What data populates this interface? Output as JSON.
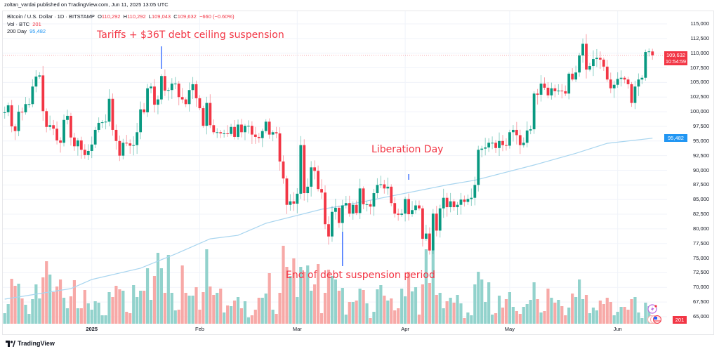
{
  "publish_line": "zoltan_vardai published on TradingView.com, Jun 11, 2025 13:05 UTC",
  "legend": {
    "symbol": "Bitcoin / U.S. Dollar · 1D · BITSTAMP",
    "o_label": "O",
    "o": "110,292",
    "h_label": "H",
    "h": "110,292",
    "l_label": "L",
    "l": "109,043",
    "c_label": "C",
    "c": "109,632",
    "change": "−660 (−0.60%)",
    "vol_label": "Vol · BTC",
    "vol": "201",
    "ma_label": "200 Day",
    "ma": "95,482"
  },
  "annotations": {
    "tariffs": "Tariffs + $36T debt ceiling suspension",
    "liberation": "Liberation Day",
    "debt_end": "End of debt suspension period"
  },
  "tags": {
    "last_price": "109,632",
    "countdown": "10:54:59",
    "ma_value": "95,482",
    "volume": "201"
  },
  "footer": {
    "brand": "TradingView"
  },
  "colors": {
    "up": "#089981",
    "down": "#f23645",
    "vol_up": "#92d2cc",
    "vol_down": "#f7a9a7",
    "ma": "#a8d5ef",
    "marker": "#2962ff",
    "ma_tag": "#2196f3"
  },
  "chart_data": {
    "type": "candlestick",
    "title": "",
    "interval": "1D",
    "xlim": [
      "2024-12-07",
      "2025-06-11"
    ],
    "ylim": [
      65000,
      115000
    ],
    "grid": true,
    "y_ticks": [
      "115,000",
      "112,500",
      "110,000",
      "107,500",
      "105,000",
      "102,500",
      "100,000",
      "97,500",
      "95,000",
      "92,500",
      "90,000",
      "87,500",
      "85,000",
      "82,500",
      "80,000",
      "77,500",
      "75,000",
      "72,500",
      "70,000",
      "67,500",
      "65,000"
    ],
    "x_ticks": [
      {
        "label": "2025",
        "date": "2025-01-01"
      },
      {
        "label": "Feb",
        "date": "2025-02-01"
      },
      {
        "label": "Mar",
        "date": "2025-03-01"
      },
      {
        "label": "Apr",
        "date": "2025-04-01"
      },
      {
        "label": "May",
        "date": "2025-05-01"
      },
      {
        "label": "Jun",
        "date": "2025-06-01"
      }
    ],
    "last_open": 110292,
    "close": [
      99900,
      101100,
      97500,
      96700,
      100000,
      99900,
      101300,
      101300,
      104300,
      106000,
      106200,
      100100,
      97400,
      97700,
      97100,
      95100,
      94700,
      98600,
      99300,
      95600,
      94100,
      95100,
      93500,
      92600,
      93300,
      94400,
      96900,
      98100,
      98200,
      98300,
      102200,
      96900,
      95000,
      92500,
      94700,
      94600,
      94200,
      94300,
      96500,
      100400,
      99900,
      104000,
      104300,
      101200,
      102100,
      106100,
      103600,
      103700,
      104800,
      104800,
      102500,
      102100,
      101300,
      103700,
      104700,
      102300,
      100600,
      97600,
      101500,
      97700,
      96500,
      96500,
      96300,
      96300,
      96200,
      97400,
      95700,
      97800,
      96500,
      97600,
      97600,
      96100,
      95700,
      95500,
      96700,
      98300,
      96100,
      96500,
      96300,
      91500,
      88600,
      84100,
      84700,
      84300,
      86000,
      94300,
      86100,
      87200,
      90500,
      89900,
      86800,
      86200,
      80800,
      78700,
      82900,
      83600,
      81000,
      84000,
      84400,
      82600,
      84100,
      82700,
      86900,
      84200,
      84200,
      83800,
      86100,
      87500,
      87600,
      86900,
      87200,
      84400,
      82600,
      82400,
      82600,
      85100,
      82500,
      83200,
      84000,
      83500,
      78300,
      79200,
      76300,
      82600,
      79700,
      83500,
      85300,
      83700,
      84700,
      83700,
      84100,
      85000,
      84600,
      85100,
      85300,
      87500,
      93500,
      93700,
      93900,
      94700,
      94700,
      93800,
      95000,
      94300,
      94200,
      96500,
      96900,
      96000,
      94300,
      94700,
      96800,
      97000,
      103100,
      102900,
      104800,
      104100,
      102800,
      104000,
      103500,
      103600,
      103500,
      103100,
      106500,
      105500,
      106700,
      109600,
      111600,
      107200,
      107800,
      109000,
      109200,
      108900,
      107700,
      105500,
      104000,
      104600,
      105600,
      105800,
      105500,
      104700,
      101500,
      104300,
      105500,
      105800,
      110200,
      110300,
      109632
    ],
    "volume_relative": [
      15,
      28,
      64,
      54,
      57,
      36,
      27,
      14,
      35,
      56,
      36,
      66,
      89,
      70,
      45,
      53,
      63,
      37,
      22,
      39,
      62,
      22,
      22,
      48,
      29,
      20,
      32,
      30,
      12,
      12,
      45,
      38,
      54,
      49,
      47,
      17,
      15,
      55,
      38,
      47,
      47,
      79,
      34,
      68,
      101,
      79,
      44,
      98,
      44,
      19,
      20,
      83,
      44,
      40,
      40,
      52,
      20,
      45,
      106,
      53,
      41,
      44,
      50,
      16,
      26,
      25,
      33,
      38,
      22,
      32,
      9,
      12,
      20,
      37,
      37,
      43,
      72,
      20,
      14,
      44,
      111,
      81,
      68,
      93,
      38,
      81,
      74,
      83,
      47,
      56,
      85,
      15,
      44,
      77,
      68,
      63,
      47,
      51,
      13,
      31,
      31,
      33,
      50,
      48,
      29,
      8,
      17,
      49,
      55,
      40,
      33,
      36,
      19,
      22,
      50,
      39,
      74,
      46,
      52,
      13,
      56,
      106,
      58,
      104,
      41,
      44,
      22,
      32,
      37,
      30,
      41,
      29,
      8,
      16,
      12,
      56,
      74,
      63,
      31,
      59,
      13,
      15,
      40,
      23,
      35,
      45,
      24,
      18,
      14,
      24,
      28,
      34,
      59,
      35,
      16,
      18,
      50,
      37,
      30,
      34,
      25,
      12,
      23,
      43,
      38,
      63,
      35,
      41,
      15,
      23,
      19,
      33,
      28,
      37,
      31,
      12,
      17,
      24,
      24,
      20,
      35,
      38,
      16,
      8,
      30,
      25,
      6
    ],
    "ma200": {
      "name": "200 Day",
      "points": [
        [
          1,
          68000
        ],
        [
          20,
          69800
        ],
        [
          26,
          71360
        ],
        [
          40,
          73280
        ],
        [
          50,
          75700
        ],
        [
          60,
          78300
        ],
        [
          68,
          78900
        ],
        [
          76,
          80950
        ],
        [
          92,
          83350
        ],
        [
          98,
          83950
        ],
        [
          128,
          87500
        ],
        [
          136,
          88300
        ],
        [
          153,
          90900
        ],
        [
          165,
          92900
        ],
        [
          174,
          94600
        ],
        [
          187,
          95482
        ]
      ]
    },
    "annotations": [
      {
        "text_key": "tariffs",
        "date": "2025-01-21"
      },
      {
        "text_key": "debt_end",
        "date": "2025-03-14"
      },
      {
        "text_key": "liberation",
        "date": "2025-04-02"
      }
    ]
  }
}
